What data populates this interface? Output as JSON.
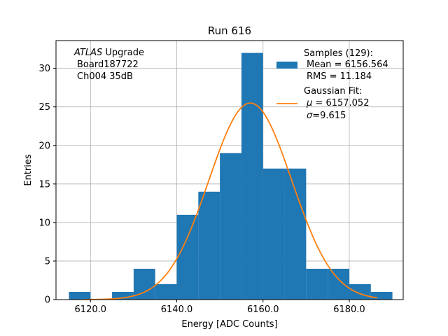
{
  "chart_data": {
    "type": "bar",
    "title": "Run 616",
    "xlabel": "Energy [ADC Counts]",
    "ylabel": "Entries",
    "xlim": [
      6112.0,
      6192.5
    ],
    "ylim": [
      0,
      33.6
    ],
    "grid": true,
    "bin_edges": [
      6115.0,
      6120.0,
      6125.0,
      6130.0,
      6135.0,
      6140.0,
      6145.0,
      6150.0,
      6155.0,
      6160.0,
      6165.0,
      6170.0,
      6175.0,
      6180.0,
      6185.0,
      6190.0
    ],
    "counts": [
      1,
      0,
      1,
      4,
      2,
      11,
      14,
      19,
      32,
      17,
      17,
      4,
      4,
      2,
      1
    ],
    "xticks": [
      6120.0,
      6140.0,
      6160.0,
      6180.0
    ],
    "xtick_labels": [
      "6120.0",
      "6140.0",
      "6160.0",
      "6180.0"
    ],
    "yticks": [
      0,
      5,
      10,
      15,
      20,
      25,
      30
    ],
    "ytick_labels": [
      "0",
      "5",
      "10",
      "15",
      "20",
      "25",
      "30"
    ],
    "bar_color": "#1f77b4",
    "fit": {
      "name": "Gaussian Fit",
      "mu": 6157.052,
      "sigma": 9.615,
      "amplitude": 25.5,
      "x_range": [
        6118.5,
        6186.5
      ],
      "color": "#ff7f0e"
    },
    "annotation_lines": [
      "ATLAS Upgrade",
      "Board187722",
      "Ch004 35dB"
    ],
    "annotation_italic_word": "ATLAS",
    "annotation_rest": " Upgrade",
    "legend_position": "upper-right",
    "legend": {
      "samples_lines": [
        "Samples (129):",
        "Mean = 6156.564",
        "RMS = 11.184"
      ],
      "fit_title": "Gaussian Fit:",
      "fit_mu_symbol": "μ",
      "fit_mu_text": " = 6157.052",
      "fit_sigma_symbol": "σ",
      "fit_sigma_text": "=9.615"
    }
  }
}
